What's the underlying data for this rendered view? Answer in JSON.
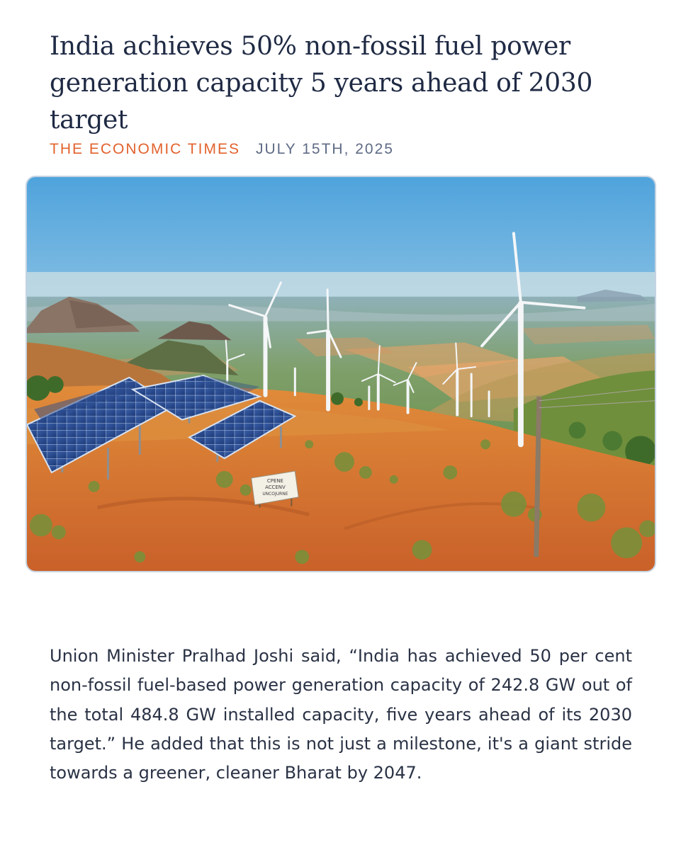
{
  "article": {
    "headline": "India achieves 50% non-fossil fuel power generation capacity 5 years ahead of 2030 target",
    "source": "THE ECONOMIC TIMES",
    "date": "JULY 15TH, 2025",
    "body": "Union Minister Pralhad Joshi said, “India has achieved 50 per cent non-fossil fuel-based power generation capacity of 242.8 GW out of the total 484.8 GW installed capacity, five years ahead of its 2030 target.” He added that this is not just a milestone, it's a giant stride towards a greener, cleaner Bharat by 2047."
  },
  "image": {
    "sign_lines": [
      "CPENE",
      "ACCENV",
      "UNCOJURNE"
    ]
  },
  "colors": {
    "headline": "#1f2a44",
    "source": "#e2622d",
    "date": "#5e6b85",
    "body": "#2a3245",
    "sky_top": "#4fa3dc",
    "soil": "#d9772f"
  },
  "icons": {
    "hero_image": "renewable-energy-landscape-illustration"
  }
}
